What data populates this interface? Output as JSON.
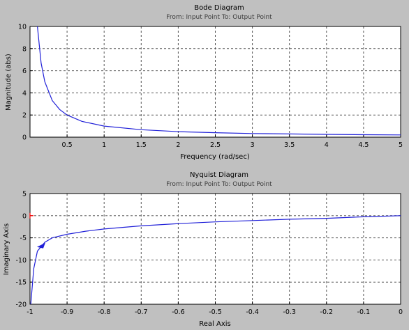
{
  "bode": {
    "title": "Bode Diagram",
    "subtitle": "From: Input Point  To: Output Point",
    "xlabel": "Frequency  (rad/sec)",
    "ylabel": "Magnitude (abs)"
  },
  "nyquist": {
    "title": "Nyquist Diagram",
    "subtitle": "From: Input Point  To: Output Point",
    "xlabel": "Real Axis",
    "ylabel": "Imaginary Axis"
  },
  "chart_data": [
    {
      "type": "line",
      "title": "Bode Diagram",
      "subtitle": "From: Input Point  To: Output Point",
      "xlabel": "Frequency  (rad/sec)",
      "ylabel": "Magnitude (abs)",
      "xlim": [
        0,
        5
      ],
      "ylim": [
        0,
        10
      ],
      "xticks": [
        0.5,
        1,
        1.5,
        2,
        2.5,
        3,
        3.5,
        4,
        4.5,
        5
      ],
      "yticks": [
        0,
        2,
        4,
        6,
        8,
        10
      ],
      "grid": true,
      "colors": {
        "line": "#2020d8",
        "background": "#ffffff",
        "grid": "#555555"
      },
      "series": [
        {
          "x": [
            0.1,
            0.15,
            0.2,
            0.3,
            0.4,
            0.5,
            0.7,
            1,
            1.5,
            2,
            2.5,
            3,
            3.5,
            4,
            4.5,
            5
          ],
          "y": [
            10,
            6.7,
            5,
            3.3,
            2.5,
            2,
            1.43,
            1,
            0.67,
            0.5,
            0.4,
            0.33,
            0.29,
            0.25,
            0.22,
            0.2
          ]
        }
      ]
    },
    {
      "type": "line",
      "title": "Nyquist Diagram",
      "subtitle": "From: Input Point  To: Output Point",
      "xlabel": "Real Axis",
      "ylabel": "Imaginary Axis",
      "xlim": [
        -1,
        0
      ],
      "ylim": [
        -20,
        5
      ],
      "xticks": [
        -1,
        -0.9,
        -0.8,
        -0.7,
        -0.6,
        -0.5,
        -0.4,
        -0.3,
        -0.2,
        -0.1,
        0
      ],
      "yticks": [
        -20,
        -15,
        -10,
        -5,
        0,
        5
      ],
      "grid": true,
      "critical_point": [
        -1,
        0
      ],
      "colors": {
        "line": "#2020d8",
        "background": "#ffffff",
        "grid": "#555555",
        "critical_point": "#ff0000",
        "zero_line": "#808080"
      },
      "series": [
        {
          "x": [
            -0.998,
            -0.99,
            -0.98,
            -0.96,
            -0.94,
            -0.9,
            -0.85,
            -0.8,
            -0.7,
            -0.6,
            -0.5,
            -0.4,
            -0.3,
            -0.2,
            -0.1,
            0
          ],
          "y": [
            -20,
            -12,
            -8,
            -6,
            -5,
            -4.2,
            -3.5,
            -3,
            -2.3,
            -1.8,
            -1.4,
            -1.1,
            -0.8,
            -0.6,
            -0.25,
            0
          ]
        }
      ],
      "arrow": {
        "x": -0.97,
        "y": -6.6
      }
    }
  ]
}
